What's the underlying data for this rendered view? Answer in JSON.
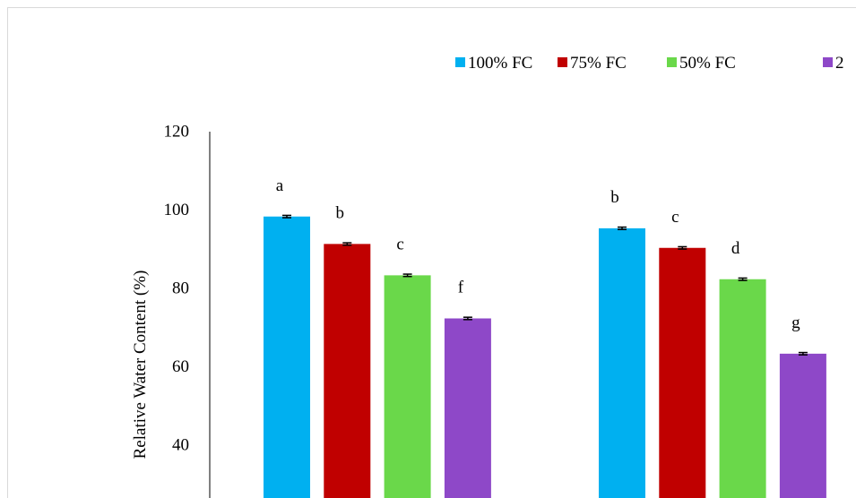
{
  "chart_data": {
    "type": "bar",
    "ylabel": "Relative Water Content (%)",
    "yticks": [
      40,
      60,
      80,
      100,
      120
    ],
    "ylim": [
      20,
      120
    ],
    "legend_position": "top",
    "series": [
      {
        "name": "100% FC",
        "color": "#00b0f0"
      },
      {
        "name": "75% FC",
        "color": "#c00000"
      },
      {
        "name": "50% FC",
        "color": "#6ad84a"
      },
      {
        "name": "2",
        "color": "#8e48c8"
      }
    ],
    "groups": [
      {
        "values": [
          98,
          91,
          83,
          72
        ],
        "errors": [
          0.3,
          0.3,
          0.3,
          0.3
        ],
        "letters": [
          "a",
          "b",
          "c",
          "f"
        ]
      },
      {
        "values": [
          95,
          90,
          82,
          63
        ],
        "errors": [
          0.3,
          0.3,
          0.3,
          0.3
        ],
        "letters": [
          "b",
          "c",
          "d",
          "g"
        ]
      }
    ]
  }
}
